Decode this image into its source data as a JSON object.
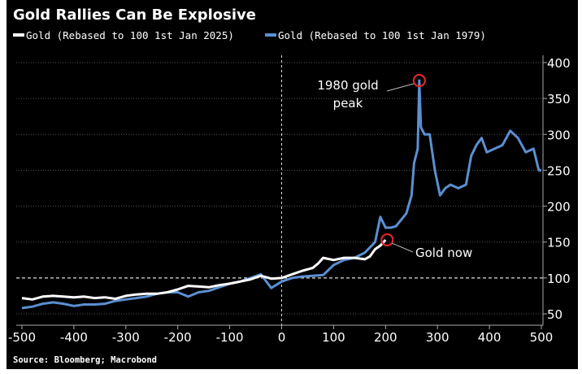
{
  "chart_data": {
    "type": "line",
    "title": "Gold Rallies Can Be Explosive",
    "source": "Source: Bloomberg; Macrobond",
    "xlabel": "",
    "ylabel": "",
    "xlim": [
      -500,
      500
    ],
    "ylim": [
      40,
      405
    ],
    "x_ticks": [
      -500,
      -400,
      -300,
      -200,
      -100,
      0,
      100,
      200,
      300,
      400,
      500
    ],
    "y_ticks": [
      50,
      100,
      150,
      200,
      250,
      300,
      350,
      400
    ],
    "y_axis_side": "right",
    "grid": "horizontal dotted",
    "reference_lines": {
      "x": 0,
      "y": 100
    },
    "legend_position": "top-left",
    "series": [
      {
        "name": "Gold (Rebased to 100 1st Jan 2025)",
        "color": "#ffffff",
        "x": [
          -500,
          -480,
          -460,
          -440,
          -420,
          -400,
          -380,
          -360,
          -340,
          -320,
          -300,
          -280,
          -260,
          -240,
          -220,
          -200,
          -180,
          -160,
          -140,
          -120,
          -100,
          -80,
          -60,
          -40,
          -20,
          0,
          20,
          40,
          60,
          70,
          80,
          100,
          120,
          140,
          160,
          170,
          180,
          190,
          200
        ],
        "y": [
          72,
          70,
          74,
          75,
          74,
          73,
          74,
          72,
          73,
          71,
          75,
          77,
          78,
          78,
          80,
          84,
          89,
          88,
          87,
          90,
          92,
          95,
          98,
          103,
          99,
          100,
          105,
          110,
          114,
          120,
          128,
          125,
          128,
          128,
          126,
          130,
          140,
          145,
          153
        ]
      },
      {
        "name": "Gold (Rebased to 100 1st Jan 1979)",
        "color": "#5b8fd1",
        "x": [
          -500,
          -480,
          -460,
          -440,
          -420,
          -400,
          -380,
          -360,
          -340,
          -320,
          -300,
          -280,
          -260,
          -240,
          -220,
          -200,
          -180,
          -160,
          -140,
          -120,
          -100,
          -80,
          -60,
          -40,
          -20,
          0,
          20,
          40,
          60,
          80,
          100,
          120,
          140,
          160,
          180,
          190,
          200,
          210,
          220,
          240,
          250,
          255,
          262,
          265,
          268,
          275,
          285,
          295,
          305,
          315,
          325,
          340,
          355,
          365,
          375,
          385,
          395,
          410,
          425,
          440,
          455,
          470,
          485,
          495,
          500
        ],
        "y": [
          58,
          60,
          64,
          66,
          64,
          61,
          63,
          63,
          64,
          68,
          70,
          72,
          74,
          78,
          80,
          80,
          74,
          80,
          82,
          87,
          92,
          95,
          100,
          105,
          86,
          95,
          100,
          102,
          103,
          104,
          118,
          125,
          128,
          135,
          150,
          185,
          170,
          170,
          172,
          190,
          215,
          260,
          280,
          375,
          310,
          300,
          300,
          250,
          215,
          225,
          230,
          225,
          230,
          270,
          285,
          295,
          275,
          280,
          285,
          305,
          295,
          275,
          280,
          250,
          250
        ]
      }
    ],
    "annotations": [
      {
        "text_lines": [
          "1980 gold",
          "peak"
        ],
        "x": 265,
        "y": 375,
        "marker": "red circle"
      },
      {
        "text_lines": [
          "Gold now"
        ],
        "x": 200,
        "y": 153,
        "marker": "red circle"
      }
    ],
    "colors": {
      "background": "#000000",
      "text": "#ffffff",
      "marker": "#e0252b"
    }
  }
}
